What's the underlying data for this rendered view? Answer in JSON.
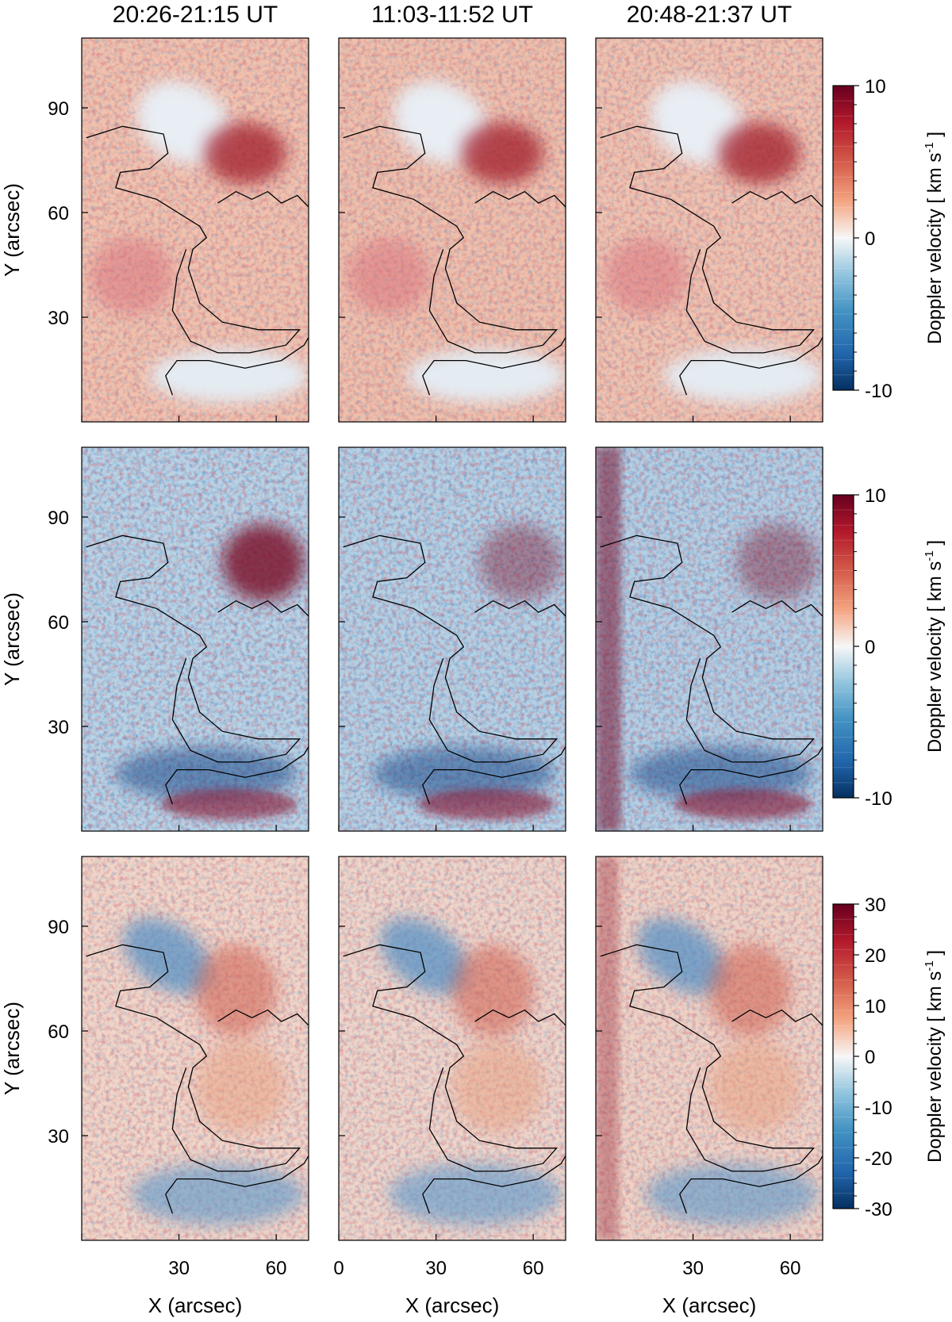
{
  "chart_data": {
    "type": "heatmap",
    "description_of_layout": "3 rows x 3 columns of Doppler velocity maps",
    "column_titles": [
      "20:26-21:15 UT",
      "11:03-11:52 UT",
      "20:48-21:37 UT"
    ],
    "xlabel": "X (arcsec)",
    "ylabel": "Y (arcsec)",
    "xlim": [
      0,
      70
    ],
    "ylim": [
      0,
      110
    ],
    "x_ticks": [
      0,
      30,
      60
    ],
    "x_tick_labels_col1": [
      "30",
      "60"
    ],
    "x_tick_labels_col2": [
      "0",
      "30",
      "60"
    ],
    "x_tick_labels_col3": [
      "30",
      "60"
    ],
    "y_ticks": [
      30,
      60,
      90
    ],
    "y_tick_labels": [
      "30",
      "60",
      "90"
    ],
    "colormap": "red-white-blue (diverging)",
    "colormap_colors": [
      "#053061",
      "#2166ac",
      "#4393c3",
      "#92c5de",
      "#f7f7f7",
      "#f4a582",
      "#d6604d",
      "#b2182b",
      "#67001f"
    ],
    "rows": [
      {
        "colorbar_label": "Doppler velocity [ km s",
        "colorbar_unit_superscript": "-1",
        "colorbar_unit_close": "]",
        "vmin": -10,
        "vmax": 10,
        "colorbar_ticks": [
          10,
          0,
          -10
        ],
        "colorbar_tick_labels": [
          "10",
          "0",
          "-10"
        ]
      },
      {
        "colorbar_label": "Doppler velocity [ km s",
        "colorbar_unit_superscript": "-1",
        "colorbar_unit_close": "]",
        "vmin": -10,
        "vmax": 10,
        "colorbar_ticks": [
          10,
          0,
          -10
        ],
        "colorbar_tick_labels": [
          "10",
          "0",
          "-10"
        ]
      },
      {
        "colorbar_label": "Doppler velocity [ km s",
        "colorbar_unit_superscript": "-1",
        "colorbar_unit_close": "]",
        "vmin": -30,
        "vmax": 30,
        "colorbar_ticks": [
          30,
          20,
          10,
          0,
          -10,
          -20,
          -30
        ],
        "colorbar_tick_labels": [
          "30",
          "20",
          "10",
          "0",
          "-10",
          "-20",
          "-30"
        ]
      }
    ]
  }
}
